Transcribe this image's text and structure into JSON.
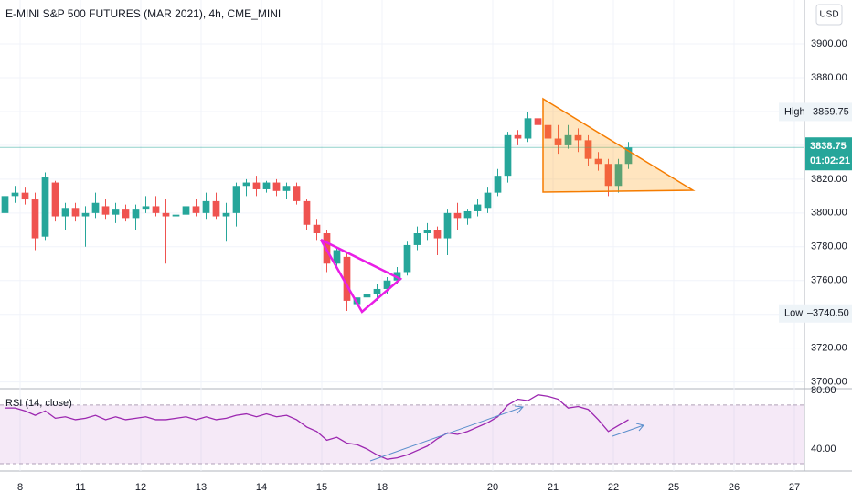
{
  "chart_data": {
    "type": "candlestick",
    "title": "E-MINI S&P 500 FUTURES (MAR 2021), 4h, CME_MINI",
    "currency": "USD",
    "up_color": "#26a69a",
    "down_color": "#ef5350",
    "grid": true,
    "xlim": [
      -0.5,
      79.5
    ],
    "xticks": [
      {
        "value": 1.5,
        "label": "8"
      },
      {
        "value": 7.5,
        "label": "11"
      },
      {
        "value": 13.5,
        "label": "12"
      },
      {
        "value": 19.5,
        "label": "13"
      },
      {
        "value": 25.5,
        "label": "14"
      },
      {
        "value": 31.5,
        "label": "15"
      },
      {
        "value": 37.5,
        "label": "18"
      },
      {
        "value": 48.5,
        "label": "20"
      },
      {
        "value": 54.5,
        "label": "21"
      },
      {
        "value": 60.5,
        "label": "22"
      },
      {
        "value": 66.5,
        "label": "25"
      },
      {
        "value": 72.5,
        "label": "26"
      },
      {
        "value": 78.5,
        "label": "27"
      }
    ],
    "ylim": [
      3696,
      3926
    ],
    "yticks": [
      {
        "value": 3700,
        "label": "3700.00"
      },
      {
        "value": 3720,
        "label": "3720.00"
      },
      {
        "value": 3740,
        "label": "3740.00"
      },
      {
        "value": 3760,
        "label": "3760.00"
      },
      {
        "value": 3780,
        "label": "3780.00"
      },
      {
        "value": 3800,
        "label": "3800.00"
      },
      {
        "value": 3820,
        "label": "3820.00"
      },
      {
        "value": 3840,
        "label": "3840.00"
      },
      {
        "value": 3860,
        "label": "3860.00"
      },
      {
        "value": 3880,
        "label": "3880.00"
      },
      {
        "value": 3900,
        "label": "3900.00"
      }
    ],
    "open": [
      3800,
      3810,
      3812,
      3808,
      3786,
      3818,
      3798,
      3803,
      3798,
      3800,
      3804,
      3799,
      3802,
      3797,
      3802,
      3804,
      3800,
      3798,
      3799,
      3804,
      3800,
      3807,
      3798,
      3800,
      3816,
      3818,
      3814,
      3818,
      3813,
      3816,
      3807,
      3793,
      3788,
      3770,
      3774,
      3746,
      3750,
      3752,
      3755,
      3760,
      3765,
      3781,
      3788,
      3790,
      3785,
      3800,
      3797,
      3801,
      3803,
      3812,
      3822,
      3846,
      3844,
      3856,
      3852,
      3844,
      3840,
      3846,
      3843,
      3832,
      3829,
      3816,
      3829
    ],
    "high": [
      3812,
      3816,
      3815,
      3812,
      3824,
      3819,
      3806,
      3806,
      3804,
      3812,
      3808,
      3806,
      3805,
      3805,
      3810,
      3810,
      3808,
      3802,
      3806,
      3808,
      3812,
      3812,
      3806,
      3818,
      3820,
      3822,
      3819,
      3820,
      3818,
      3818,
      3808,
      3796,
      3790,
      3780,
      3776,
      3752,
      3756,
      3758,
      3762,
      3768,
      3783,
      3792,
      3794,
      3792,
      3802,
      3806,
      3802,
      3808,
      3815,
      3826,
      3848,
      3849,
      3859.75,
      3858,
      3856,
      3852,
      3852,
      3850,
      3846,
      3836,
      3832,
      3832,
      3842
    ],
    "low": [
      3795,
      3806,
      3805,
      3778,
      3784,
      3795,
      3790,
      3795,
      3780,
      3797,
      3796,
      3794,
      3795,
      3790,
      3800,
      3798,
      3770,
      3790,
      3795,
      3798,
      3796,
      3796,
      3783,
      3792,
      3810,
      3810,
      3812,
      3810,
      3808,
      3805,
      3790,
      3784,
      3765,
      3768,
      3742,
      3740.5,
      3746,
      3748,
      3752,
      3758,
      3763,
      3778,
      3784,
      3775,
      3775,
      3790,
      3793,
      3798,
      3800,
      3810,
      3818,
      3840,
      3842,
      3845,
      3840,
      3835,
      3838,
      3836,
      3828,
      3825,
      3810,
      3812,
      3826
    ],
    "close": [
      3810,
      3812,
      3808,
      3785,
      3821,
      3798,
      3803,
      3798,
      3800,
      3806,
      3799,
      3802,
      3797,
      3802,
      3804,
      3800,
      3798,
      3799,
      3804,
      3800,
      3807,
      3798,
      3800,
      3816,
      3818,
      3814,
      3818,
      3813,
      3816,
      3807,
      3793,
      3788,
      3770,
      3778,
      3748,
      3750,
      3752,
      3755,
      3760,
      3765,
      3781,
      3788,
      3790,
      3785,
      3800,
      3797,
      3801,
      3805,
      3812,
      3822,
      3846,
      3844,
      3856,
      3852,
      3844,
      3840,
      3846,
      3843,
      3832,
      3829,
      3816,
      3829,
      3838.75
    ],
    "markers": [
      {
        "name": "High",
        "value": 3859.75,
        "label": "3859.75"
      },
      {
        "name": "Low",
        "value": 3740.5,
        "label": "3740.50"
      }
    ],
    "last_price": {
      "value": 3838.75,
      "label": "3838.75",
      "countdown": "01:02:21"
    },
    "rsi": {
      "name": "RSI (14, close)",
      "color": "#9c27b0",
      "ylim": [
        25,
        81.2
      ],
      "yticks": [
        {
          "value": 80,
          "label": "80.00"
        },
        {
          "value": 40,
          "label": "40.00"
        }
      ],
      "band": [
        30,
        70
      ],
      "values": [
        68,
        68,
        66,
        63,
        66,
        61,
        62,
        60,
        61,
        63,
        60,
        62,
        60,
        61,
        62,
        60,
        60,
        61,
        62,
        60,
        62,
        60,
        61,
        63,
        64,
        62,
        64,
        62,
        63,
        60,
        55,
        52,
        46,
        48,
        44,
        43,
        40,
        36,
        33,
        34,
        36,
        39,
        42,
        47,
        51,
        50,
        52,
        55,
        58,
        62,
        70,
        74,
        73,
        77,
        76,
        74,
        68,
        69,
        67,
        60,
        52,
        56,
        60
      ]
    }
  }
}
